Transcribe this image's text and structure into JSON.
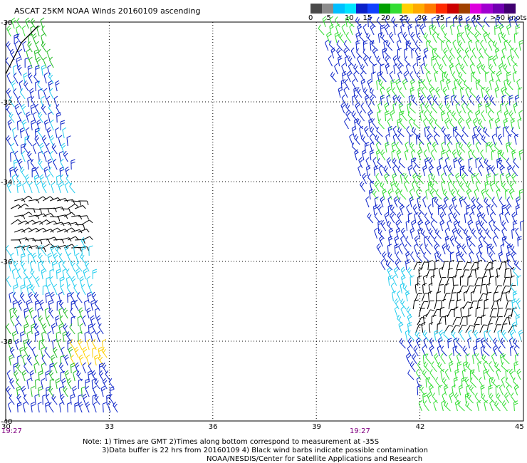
{
  "title": "ASCAT 25KM NOAA Winds 20160109 ascending",
  "legend": {
    "colors": [
      "#4a4a4a",
      "#8c8c8c",
      "#00bfff",
      "#00e5ff",
      "#0a21c8",
      "#1040ff",
      "#00a000",
      "#33dd33",
      "#ffd000",
      "#ffaa00",
      "#ff7a00",
      "#ff2a00",
      "#cc0000",
      "#a04000",
      "#dd00dd",
      "#a000d0",
      "#7000b0",
      "#400070"
    ],
    "labels": [
      "0",
      "5",
      "10",
      "15",
      "20",
      "25",
      "30",
      "35",
      "40",
      "45",
      ">50 knots"
    ]
  },
  "map": {
    "lon_ticks": [
      "30",
      "33",
      "36",
      "39",
      "42",
      "45"
    ],
    "lat_ticks": [
      "-30",
      "-32",
      "-34",
      "-36",
      "-38",
      "-40"
    ],
    "lon_range": [
      30,
      45
    ],
    "lat_range": [
      -40,
      -30
    ],
    "pass_times": [
      "19:27",
      "19:27"
    ],
    "wind_colors": {
      "black": "#000000",
      "cyan": "#22ccee",
      "blue": "#0a21c8",
      "green": "#22bb22",
      "lime": "#33dd33",
      "yellow": "#ffd000"
    }
  },
  "notes": {
    "line1": "Note: 1) Times are GMT 2)Times along bottom correspond to measurement at -35S",
    "line2": "3)Data buffer is 22 hrs from 20160109 4) Black wind barbs indicate possible contamination",
    "line3": "NOAA/NESDIS/Center for Satellite Applications and Research"
  }
}
